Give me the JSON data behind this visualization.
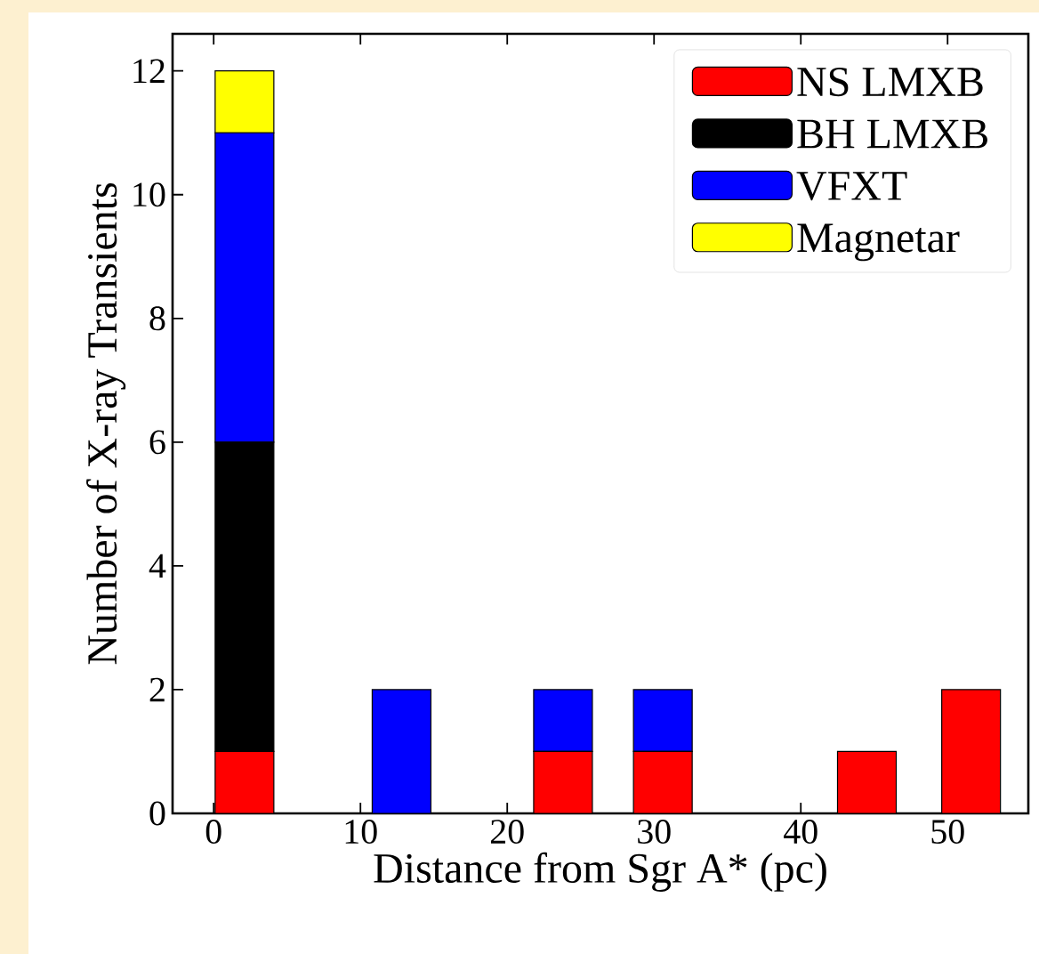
{
  "chart_data": {
    "type": "bar",
    "stacked": true,
    "xlabel": "Distance from Sgr A* (pc)",
    "ylabel": "Number of X-ray Transients",
    "x": [
      2.1,
      12.8,
      23.8,
      30.6,
      44.5,
      51.6
    ],
    "series": [
      {
        "name": "NS LMXB",
        "color": "#ff0000",
        "values": [
          1,
          0,
          1,
          1,
          1,
          2
        ]
      },
      {
        "name": "BH LMXB",
        "color": "#000000",
        "values": [
          5,
          0,
          0,
          0,
          0,
          0
        ]
      },
      {
        "name": "VFXT",
        "color": "#0000ff",
        "values": [
          5,
          2,
          1,
          1,
          0,
          0
        ]
      },
      {
        "name": "Magnetar",
        "color": "#ffff00",
        "values": [
          1,
          0,
          0,
          0,
          0,
          0
        ]
      }
    ],
    "xlim": [
      -2.8,
      55.5
    ],
    "ylim": [
      0,
      12.6
    ],
    "xticks": [
      0,
      10,
      20,
      30,
      40,
      50
    ],
    "yticks": [
      0,
      2,
      4,
      6,
      8,
      10,
      12
    ],
    "legend": "top right",
    "grid": false
  }
}
